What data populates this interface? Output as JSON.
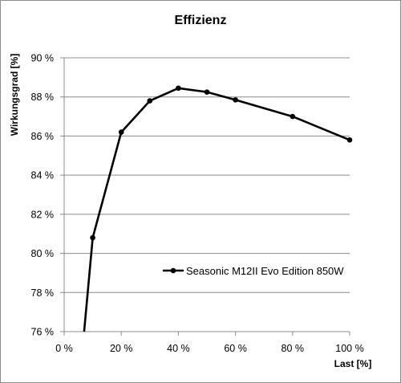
{
  "chart_data": {
    "type": "line",
    "title": "Effizienz",
    "xlabel": "Last [%]",
    "ylabel": "Wirkungsgrad [%]",
    "xlim": [
      0,
      100
    ],
    "ylim": [
      76,
      90
    ],
    "x_ticks": [
      "0 %",
      "20 %",
      "40 %",
      "60 %",
      "80 %",
      "100 %"
    ],
    "y_ticks": [
      "76 %",
      "78 %",
      "80 %",
      "82 %",
      "84 %",
      "86 %",
      "88 %",
      "90 %"
    ],
    "grid": "horizontal",
    "legend_position": "center-right",
    "series": [
      {
        "name": "Seasonic M12II Evo Edition 850W",
        "color": "#000000",
        "points": [
          {
            "x": 7,
            "y": 76.0,
            "marker": false
          },
          {
            "x": 10,
            "y": 80.8,
            "marker": true
          },
          {
            "x": 20,
            "y": 86.2,
            "marker": true
          },
          {
            "x": 30,
            "y": 87.8,
            "marker": true
          },
          {
            "x": 40,
            "y": 88.45,
            "marker": true
          },
          {
            "x": 50,
            "y": 88.25,
            "marker": true
          },
          {
            "x": 60,
            "y": 87.85,
            "marker": true
          },
          {
            "x": 80,
            "y": 87.0,
            "marker": true
          },
          {
            "x": 100,
            "y": 85.8,
            "marker": true
          }
        ]
      }
    ]
  }
}
